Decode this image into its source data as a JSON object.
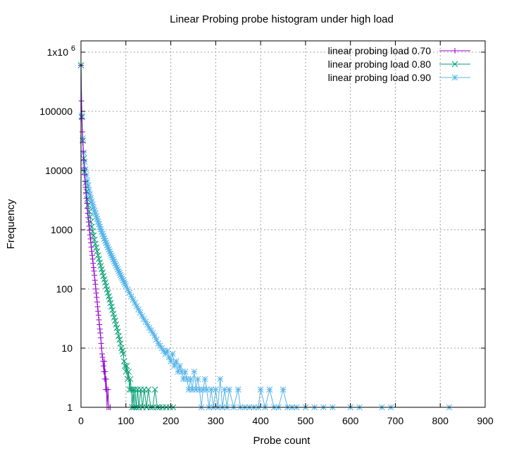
{
  "chart_data": {
    "type": "line",
    "title": "Linear Probing probe histogram under high load",
    "xlabel": "Probe count",
    "ylabel": "Frequency",
    "xlim": [
      0,
      900
    ],
    "ylim": [
      1,
      1000000
    ],
    "yscale": "log",
    "grid": true,
    "legend_position": "top-right",
    "x_ticks": [
      "0",
      "100",
      "200",
      "300",
      "400",
      "500",
      "600",
      "700",
      "800",
      "900"
    ],
    "y_ticks": [
      {
        "value": 1,
        "label": "1"
      },
      {
        "value": 10,
        "label": "10"
      },
      {
        "value": 100,
        "label": "100"
      },
      {
        "value": 1000,
        "label": "1000"
      },
      {
        "value": 10000,
        "label": "10000"
      },
      {
        "value": 100000,
        "label": "100000"
      }
    ],
    "y_top_tick": {
      "value": 1000000,
      "base": "1x10",
      "exponent": "6"
    },
    "series": [
      {
        "name": "linear probing load 0.70",
        "color": "#9400d3",
        "marker": "plus",
        "points": [
          [
            0,
            600000
          ],
          [
            1,
            150000
          ],
          [
            2,
            75000
          ],
          [
            3,
            45000
          ],
          [
            4,
            30000
          ],
          [
            5,
            21000
          ],
          [
            6,
            15000
          ],
          [
            7,
            11000
          ],
          [
            8,
            8500
          ],
          [
            9,
            6500
          ],
          [
            10,
            5200
          ],
          [
            11,
            4200
          ],
          [
            12,
            3400
          ],
          [
            13,
            2800
          ],
          [
            14,
            2300
          ],
          [
            15,
            1900
          ],
          [
            16,
            1600
          ],
          [
            17,
            1350
          ],
          [
            18,
            1150
          ],
          [
            19,
            980
          ],
          [
            20,
            820
          ],
          [
            21,
            700
          ],
          [
            22,
            600
          ],
          [
            23,
            510
          ],
          [
            24,
            430
          ],
          [
            25,
            370
          ],
          [
            26,
            320
          ],
          [
            27,
            270
          ],
          [
            28,
            230
          ],
          [
            29,
            200
          ],
          [
            30,
            170
          ],
          [
            31,
            140
          ],
          [
            32,
            120
          ],
          [
            33,
            100
          ],
          [
            34,
            85
          ],
          [
            35,
            72
          ],
          [
            36,
            60
          ],
          [
            37,
            50
          ],
          [
            38,
            42
          ],
          [
            39,
            36
          ],
          [
            40,
            30
          ],
          [
            41,
            25
          ],
          [
            42,
            21
          ],
          [
            43,
            18
          ],
          [
            44,
            15
          ],
          [
            45,
            12
          ],
          [
            46,
            10
          ],
          [
            47,
            8
          ],
          [
            48,
            7
          ],
          [
            49,
            6
          ],
          [
            50,
            5
          ],
          [
            51,
            4
          ],
          [
            52,
            6
          ],
          [
            53,
            3
          ],
          [
            54,
            4
          ],
          [
            55,
            2
          ],
          [
            56,
            3
          ],
          [
            57,
            2
          ],
          [
            58,
            1
          ],
          [
            60,
            2
          ],
          [
            62,
            1
          ],
          [
            65,
            1
          ]
        ]
      },
      {
        "name": "linear probing load 0.80",
        "color": "#009e73",
        "marker": "cross",
        "points": [
          [
            0,
            600000
          ],
          [
            2,
            80000
          ],
          [
            4,
            32000
          ],
          [
            6,
            16000
          ],
          [
            8,
            9500
          ],
          [
            10,
            6200
          ],
          [
            12,
            4400
          ],
          [
            14,
            3300
          ],
          [
            16,
            2600
          ],
          [
            18,
            2050
          ],
          [
            20,
            1650
          ],
          [
            22,
            1350
          ],
          [
            24,
            1120
          ],
          [
            26,
            940
          ],
          [
            28,
            800
          ],
          [
            30,
            680
          ],
          [
            32,
            580
          ],
          [
            34,
            500
          ],
          [
            36,
            430
          ],
          [
            38,
            370
          ],
          [
            40,
            320
          ],
          [
            42,
            280
          ],
          [
            44,
            245
          ],
          [
            46,
            215
          ],
          [
            48,
            190
          ],
          [
            50,
            165
          ],
          [
            52,
            145
          ],
          [
            54,
            128
          ],
          [
            56,
            112
          ],
          [
            58,
            98
          ],
          [
            60,
            86
          ],
          [
            62,
            75
          ],
          [
            64,
            66
          ],
          [
            66,
            58
          ],
          [
            68,
            50
          ],
          [
            70,
            44
          ],
          [
            72,
            38
          ],
          [
            74,
            33
          ],
          [
            76,
            29
          ],
          [
            78,
            25
          ],
          [
            80,
            22
          ],
          [
            82,
            19
          ],
          [
            84,
            16
          ],
          [
            86,
            14
          ],
          [
            88,
            12
          ],
          [
            90,
            10
          ],
          [
            92,
            9
          ],
          [
            94,
            8
          ],
          [
            96,
            6
          ],
          [
            98,
            5
          ],
          [
            100,
            4
          ],
          [
            102,
            5
          ],
          [
            104,
            3
          ],
          [
            106,
            4
          ],
          [
            108,
            2
          ],
          [
            110,
            3
          ],
          [
            112,
            2
          ],
          [
            114,
            1
          ],
          [
            116,
            2
          ],
          [
            118,
            1
          ],
          [
            120,
            2
          ],
          [
            123,
            1
          ],
          [
            126,
            2
          ],
          [
            129,
            1
          ],
          [
            133,
            2
          ],
          [
            137,
            1
          ],
          [
            141,
            2
          ],
          [
            146,
            1
          ],
          [
            150,
            2
          ],
          [
            155,
            1
          ],
          [
            160,
            1
          ],
          [
            165,
            2
          ],
          [
            170,
            1
          ],
          [
            175,
            1
          ],
          [
            182,
            1
          ],
          [
            190,
            1
          ],
          [
            198,
            1
          ],
          [
            205,
            1
          ]
        ]
      },
      {
        "name": "linear probing load 0.90",
        "color": "#56b4e9",
        "marker": "star",
        "points": [
          [
            0,
            600000
          ],
          [
            2,
            85000
          ],
          [
            4,
            35000
          ],
          [
            6,
            20000
          ],
          [
            8,
            14000
          ],
          [
            10,
            10500
          ],
          [
            12,
            8300
          ],
          [
            14,
            6700
          ],
          [
            16,
            5600
          ],
          [
            18,
            4700
          ],
          [
            20,
            4000
          ],
          [
            22,
            3450
          ],
          [
            24,
            3000
          ],
          [
            26,
            2650
          ],
          [
            28,
            2350
          ],
          [
            30,
            2100
          ],
          [
            32,
            1880
          ],
          [
            34,
            1690
          ],
          [
            36,
            1520
          ],
          [
            38,
            1370
          ],
          [
            40,
            1240
          ],
          [
            42,
            1120
          ],
          [
            44,
            1020
          ],
          [
            46,
            930
          ],
          [
            48,
            850
          ],
          [
            50,
            780
          ],
          [
            52,
            710
          ],
          [
            54,
            650
          ],
          [
            56,
            600
          ],
          [
            58,
            550
          ],
          [
            60,
            505
          ],
          [
            62,
            465
          ],
          [
            64,
            430
          ],
          [
            66,
            395
          ],
          [
            68,
            365
          ],
          [
            70,
            340
          ],
          [
            72,
            315
          ],
          [
            74,
            290
          ],
          [
            76,
            270
          ],
          [
            78,
            250
          ],
          [
            80,
            232
          ],
          [
            82,
            215
          ],
          [
            84,
            200
          ],
          [
            86,
            186
          ],
          [
            88,
            173
          ],
          [
            90,
            161
          ],
          [
            92,
            150
          ],
          [
            94,
            140
          ],
          [
            96,
            130
          ],
          [
            98,
            121
          ],
          [
            100,
            113
          ],
          [
            104,
            98
          ],
          [
            108,
            86
          ],
          [
            112,
            75
          ],
          [
            116,
            66
          ],
          [
            120,
            58
          ],
          [
            124,
            51
          ],
          [
            128,
            45
          ],
          [
            132,
            40
          ],
          [
            136,
            35
          ],
          [
            140,
            31
          ],
          [
            144,
            28
          ],
          [
            148,
            25
          ],
          [
            152,
            22
          ],
          [
            156,
            20
          ],
          [
            160,
            18
          ],
          [
            164,
            16
          ],
          [
            168,
            14
          ],
          [
            172,
            12
          ],
          [
            176,
            11
          ],
          [
            180,
            10
          ],
          [
            184,
            9
          ],
          [
            188,
            8
          ],
          [
            192,
            9
          ],
          [
            196,
            7
          ],
          [
            200,
            6
          ],
          [
            204,
            8
          ],
          [
            208,
            5
          ],
          [
            212,
            6
          ],
          [
            216,
            4
          ],
          [
            220,
            5
          ],
          [
            224,
            4
          ],
          [
            228,
            3
          ],
          [
            232,
            4
          ],
          [
            236,
            3
          ],
          [
            240,
            2
          ],
          [
            244,
            3
          ],
          [
            248,
            2
          ],
          [
            252,
            4
          ],
          [
            256,
            2
          ],
          [
            260,
            3
          ],
          [
            264,
            2
          ],
          [
            268,
            1
          ],
          [
            272,
            2
          ],
          [
            276,
            3
          ],
          [
            280,
            2
          ],
          [
            285,
            1
          ],
          [
            290,
            2
          ],
          [
            295,
            1
          ],
          [
            300,
            2
          ],
          [
            305,
            1
          ],
          [
            310,
            3
          ],
          [
            315,
            1
          ],
          [
            320,
            2
          ],
          [
            325,
            1
          ],
          [
            330,
            2
          ],
          [
            340,
            1
          ],
          [
            350,
            2
          ],
          [
            355,
            1
          ],
          [
            365,
            1
          ],
          [
            375,
            1
          ],
          [
            385,
            1
          ],
          [
            395,
            1
          ],
          [
            400,
            2
          ],
          [
            410,
            1
          ],
          [
            420,
            2
          ],
          [
            430,
            1
          ],
          [
            440,
            1
          ],
          [
            450,
            2
          ],
          [
            460,
            1
          ],
          [
            470,
            1
          ],
          [
            480,
            1
          ],
          [
            500,
            1
          ],
          [
            520,
            1
          ],
          [
            540,
            1
          ],
          [
            560,
            1
          ],
          [
            600,
            1
          ],
          [
            620,
            1
          ],
          [
            670,
            1
          ],
          [
            690,
            1
          ],
          [
            820,
            1
          ]
        ]
      }
    ]
  }
}
